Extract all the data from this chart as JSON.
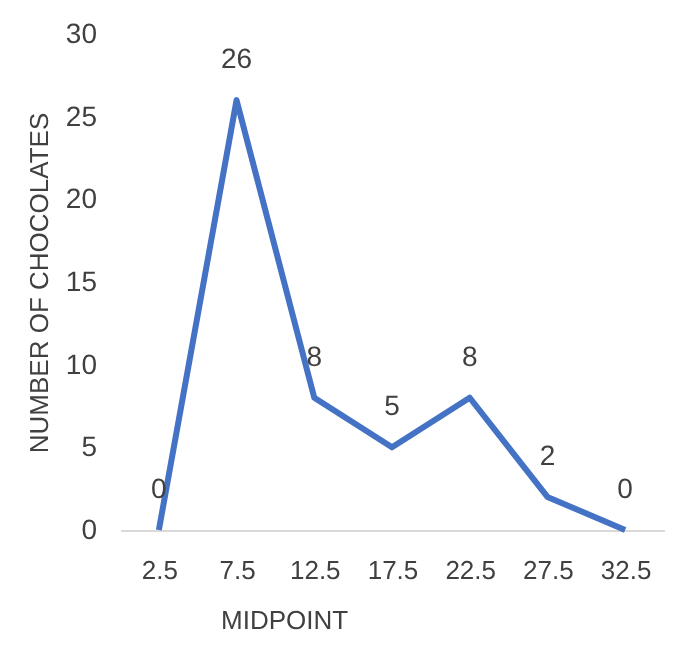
{
  "chart_data": {
    "type": "line",
    "xlabel": "MIDPOINT",
    "ylabel": "NUMBER OF CHOCOLATES",
    "categories": [
      "2.5",
      "7.5",
      "12.5",
      "17.5",
      "22.5",
      "27.5",
      "32.5"
    ],
    "series": [
      {
        "color": "#4472c4",
        "values": [
          0,
          26,
          8,
          5,
          8,
          2,
          0
        ]
      }
    ],
    "ylim": [
      0,
      30
    ],
    "yticks": [
      0,
      5,
      10,
      15,
      20,
      25,
      30
    ],
    "data_labels": true,
    "line_style": "solid"
  }
}
